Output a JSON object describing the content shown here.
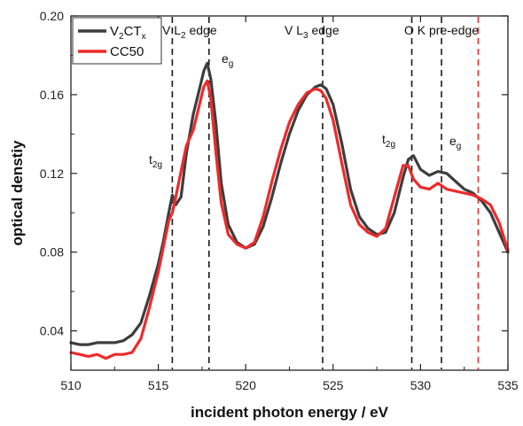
{
  "chart_data": {
    "type": "line",
    "title": "",
    "xlabel": "incident photon energy / eV",
    "ylabel": "optical denstiy",
    "xlim": [
      510,
      535
    ],
    "ylim": [
      0.02,
      0.2
    ],
    "xticks": [
      "510",
      "515",
      "520",
      "525",
      "530",
      "535"
    ],
    "xtick_values": [
      510,
      515,
      520,
      525,
      530,
      535
    ],
    "yticks": [
      "0.04",
      "0.08",
      "0.12",
      "0.16",
      "0.20"
    ],
    "ytick_values": [
      0.04,
      0.08,
      0.12,
      0.16,
      0.2
    ],
    "grid": false,
    "legend_position": "top-left",
    "legend": {
      "v2ctx": {
        "main": "V",
        "sub1": "2",
        "mid": "CT",
        "sub2": "x"
      },
      "cc50": "CC50"
    },
    "series": [
      {
        "key": "v2ctx",
        "color": "#3d3d3d",
        "x": [
          510,
          510.5,
          511,
          511.5,
          512,
          512.5,
          513,
          513.5,
          514,
          514.5,
          515,
          515.3,
          515.6,
          515.8,
          516,
          516.3,
          516.6,
          517,
          517.3,
          517.6,
          517.8,
          518,
          518.3,
          518.6,
          519,
          519.5,
          520,
          520.5,
          521,
          521.5,
          522,
          522.5,
          523,
          523.5,
          524,
          524.3,
          524.6,
          525,
          525.5,
          526,
          526.5,
          527,
          527.5,
          528,
          528.5,
          529,
          529.3,
          529.6,
          530,
          530.5,
          531,
          531.5,
          532,
          532.5,
          533,
          533.5,
          534,
          534.5,
          535
        ],
        "y": [
          0.034,
          0.033,
          0.033,
          0.034,
          0.034,
          0.034,
          0.035,
          0.038,
          0.044,
          0.058,
          0.074,
          0.086,
          0.1,
          0.109,
          0.104,
          0.108,
          0.13,
          0.15,
          0.161,
          0.172,
          0.176,
          0.168,
          0.145,
          0.115,
          0.094,
          0.085,
          0.082,
          0.084,
          0.093,
          0.108,
          0.125,
          0.14,
          0.152,
          0.16,
          0.164,
          0.165,
          0.163,
          0.155,
          0.135,
          0.112,
          0.098,
          0.092,
          0.089,
          0.09,
          0.1,
          0.118,
          0.127,
          0.129,
          0.122,
          0.119,
          0.121,
          0.12,
          0.116,
          0.112,
          0.11,
          0.106,
          0.1,
          0.09,
          0.08
        ]
      },
      {
        "key": "cc50",
        "color": "#ee2a2a",
        "x": [
          510,
          510.5,
          511,
          511.5,
          512,
          512.5,
          513,
          513.5,
          514,
          514.5,
          515,
          515.3,
          515.6,
          515.8,
          516,
          516.3,
          516.6,
          517,
          517.3,
          517.6,
          517.8,
          518,
          518.3,
          518.6,
          519,
          519.5,
          520,
          520.5,
          521,
          521.5,
          522,
          522.5,
          523,
          523.5,
          524,
          524.3,
          524.6,
          525,
          525.5,
          526,
          526.5,
          527,
          527.5,
          528,
          528.5,
          529,
          529.3,
          529.6,
          530,
          530.5,
          531,
          531.5,
          532,
          532.5,
          533,
          533.5,
          534,
          534.5,
          535
        ],
        "y": [
          0.029,
          0.028,
          0.027,
          0.028,
          0.026,
          0.028,
          0.028,
          0.029,
          0.036,
          0.052,
          0.07,
          0.083,
          0.096,
          0.1,
          0.108,
          0.121,
          0.134,
          0.142,
          0.153,
          0.164,
          0.167,
          0.158,
          0.13,
          0.105,
          0.089,
          0.084,
          0.082,
          0.085,
          0.098,
          0.116,
          0.132,
          0.146,
          0.155,
          0.161,
          0.163,
          0.162,
          0.158,
          0.147,
          0.125,
          0.104,
          0.094,
          0.09,
          0.088,
          0.092,
          0.108,
          0.124,
          0.124,
          0.117,
          0.113,
          0.112,
          0.115,
          0.112,
          0.111,
          0.11,
          0.109,
          0.107,
          0.104,
          0.095,
          0.081
        ]
      }
    ],
    "vlines": [
      {
        "x": 515.8,
        "color": "#1a1a1a"
      },
      {
        "x": 517.9,
        "color": "#1a1a1a"
      },
      {
        "x": 524.4,
        "color": "#1a1a1a"
      },
      {
        "x": 529.5,
        "color": "#1a1a1a"
      },
      {
        "x": 531.2,
        "color": "#1a1a1a"
      },
      {
        "x": 533.3,
        "color": "#ee2a2a"
      }
    ],
    "annotations": {
      "v_l2_edge": {
        "pre": "V L",
        "sub": "2",
        "post": " edge"
      },
      "v_l3_edge": {
        "pre": "V L",
        "sub": "3",
        "post": " edge"
      },
      "o_k_preedge": {
        "text": "O K pre-edge"
      },
      "t2g_1": {
        "base": "t",
        "sub": "2g"
      },
      "eg_1": {
        "base": "e",
        "sub": "g"
      },
      "t2g_2": {
        "base": "t",
        "sub": "2g"
      },
      "eg_2": {
        "base": "e",
        "sub": "g"
      }
    }
  }
}
